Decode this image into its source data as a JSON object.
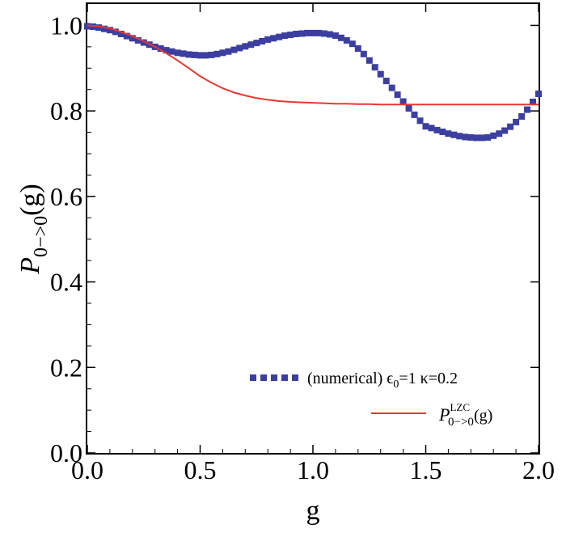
{
  "chart_data": {
    "type": "line",
    "xlabel": "g",
    "ylabel": {
      "base": "P",
      "sub": "0−>0",
      "tail": "(g)"
    },
    "xlim": [
      0,
      2
    ],
    "ylim": [
      0,
      1.05
    ],
    "xticks": [
      0.0,
      0.5,
      1.0,
      1.5,
      2.0
    ],
    "xtick_labels": [
      "0.0",
      "0.5",
      "1.0",
      "1.5",
      "2.0"
    ],
    "yticks": [
      0.0,
      0.2,
      0.4,
      0.6,
      0.8,
      1.0
    ],
    "ytick_labels": [
      "0.0",
      "0.2",
      "0.4",
      "0.6",
      "0.8",
      "1.0"
    ],
    "legend_position": "bottom-right",
    "series": [
      {
        "name": "numerical",
        "style": "markers",
        "color": "#3c3fa0",
        "legend": {
          "prefix": "(numerical) ",
          "eps": "ϵ",
          "eps_sub": "0",
          "rest": "=1 κ=0.2"
        },
        "x": [
          0.0,
          0.025,
          0.05,
          0.075,
          0.1,
          0.125,
          0.15,
          0.175,
          0.2,
          0.225,
          0.25,
          0.275,
          0.3,
          0.325,
          0.35,
          0.375,
          0.4,
          0.425,
          0.45,
          0.475,
          0.5,
          0.525,
          0.55,
          0.575,
          0.6,
          0.625,
          0.65,
          0.675,
          0.7,
          0.725,
          0.75,
          0.775,
          0.8,
          0.825,
          0.85,
          0.875,
          0.9,
          0.925,
          0.95,
          0.975,
          1.0,
          1.025,
          1.05,
          1.075,
          1.1,
          1.125,
          1.15,
          1.175,
          1.2,
          1.225,
          1.25,
          1.275,
          1.3,
          1.325,
          1.35,
          1.375,
          1.4,
          1.425,
          1.45,
          1.475,
          1.5,
          1.525,
          1.55,
          1.575,
          1.6,
          1.625,
          1.65,
          1.675,
          1.7,
          1.725,
          1.75,
          1.775,
          1.8,
          1.825,
          1.85,
          1.875,
          1.9,
          1.925,
          1.95,
          1.975,
          2.0
        ],
        "y": [
          0.998,
          0.997,
          0.995,
          0.992,
          0.989,
          0.985,
          0.98,
          0.975,
          0.97,
          0.965,
          0.96,
          0.955,
          0.95,
          0.946,
          0.942,
          0.939,
          0.936,
          0.934,
          0.932,
          0.931,
          0.93,
          0.93,
          0.931,
          0.933,
          0.936,
          0.939,
          0.943,
          0.947,
          0.951,
          0.955,
          0.959,
          0.963,
          0.967,
          0.97,
          0.973,
          0.976,
          0.978,
          0.98,
          0.981,
          0.982,
          0.982,
          0.982,
          0.981,
          0.979,
          0.976,
          0.971,
          0.965,
          0.957,
          0.946,
          0.933,
          0.918,
          0.902,
          0.886,
          0.87,
          0.854,
          0.838,
          0.822,
          0.806,
          0.791,
          0.777,
          0.764,
          0.76,
          0.755,
          0.751,
          0.747,
          0.744,
          0.741,
          0.739,
          0.738,
          0.737,
          0.737,
          0.738,
          0.742,
          0.747,
          0.754,
          0.763,
          0.774,
          0.787,
          0.803,
          0.821,
          0.84
        ]
      },
      {
        "name": "LZC",
        "style": "line",
        "color": "#e8382f",
        "legend": {
          "base": "P",
          "sup": "LZC",
          "sub": "0−>0",
          "tail": "(g)"
        },
        "x": [
          0.0,
          0.05,
          0.1,
          0.15,
          0.2,
          0.25,
          0.3,
          0.35,
          0.4,
          0.45,
          0.5,
          0.55,
          0.6,
          0.65,
          0.7,
          0.75,
          0.8,
          0.85,
          0.9,
          0.95,
          1.0,
          1.05,
          1.1,
          1.15,
          1.2,
          1.25,
          1.3,
          1.4,
          1.5,
          1.6,
          1.7,
          1.8,
          1.9,
          2.0
        ],
        "y": [
          1.0,
          0.998,
          0.993,
          0.985,
          0.975,
          0.963,
          0.95,
          0.935,
          0.918,
          0.9,
          0.881,
          0.866,
          0.853,
          0.843,
          0.836,
          0.83,
          0.826,
          0.823,
          0.821,
          0.82,
          0.819,
          0.818,
          0.817,
          0.817,
          0.816,
          0.816,
          0.815,
          0.815,
          0.815,
          0.815,
          0.815,
          0.815,
          0.815,
          0.815
        ]
      }
    ]
  }
}
